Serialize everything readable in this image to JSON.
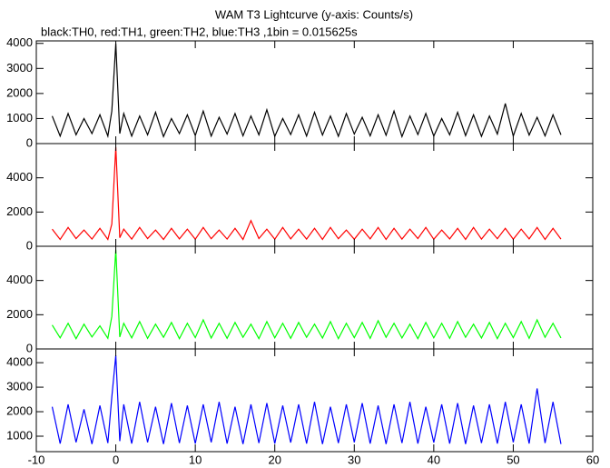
{
  "chart_data": [
    {
      "type": "line",
      "title": "WAM T3 Lightcurve (y-axis: Counts/s)",
      "subtitle": "black:TH0, red:TH1, green:TH2, blue:TH3 ,1bin = 0.015625s",
      "x": [
        -8,
        -7,
        -6,
        -5,
        -4,
        -3,
        -2,
        -1,
        -0.5,
        0,
        0.5,
        1,
        2,
        3,
        4,
        5,
        6,
        7,
        8,
        9,
        10,
        11,
        12,
        13,
        14,
        15,
        16,
        17,
        18,
        19,
        20,
        21,
        22,
        23,
        24,
        25,
        26,
        27,
        28,
        29,
        30,
        31,
        32,
        33,
        34,
        35,
        36,
        37,
        38,
        39,
        40,
        41,
        42,
        43,
        44,
        45,
        46,
        47,
        48,
        49,
        50,
        51,
        52,
        53,
        54,
        55,
        56
      ],
      "values": [
        1100,
        300,
        1200,
        350,
        1000,
        400,
        1150,
        300,
        1300,
        4000,
        400,
        1200,
        300,
        1100,
        350,
        1250,
        280,
        1000,
        400,
        1150,
        320,
        1300,
        300,
        1050,
        380,
        1200,
        310,
        1100,
        350,
        1350,
        290,
        1000,
        360,
        1150,
        300,
        1250,
        340,
        1100,
        290,
        1200,
        380,
        1050,
        310,
        1150,
        330,
        1300,
        280,
        1100,
        360,
        1200,
        300,
        1000,
        350,
        1250,
        320,
        1150,
        290,
        1100,
        380,
        1600,
        300,
        1200,
        340,
        1050,
        310,
        1150,
        350
      ],
      "color": "#000000",
      "xlim": [
        -10,
        60
      ],
      "ylim": [
        0,
        4100
      ],
      "yticks": [
        0,
        1000,
        2000,
        3000,
        4000
      ]
    },
    {
      "type": "line",
      "x": [
        -8,
        -7,
        -6,
        -5,
        -4,
        -3,
        -2,
        -1,
        -0.5,
        0,
        0.5,
        1,
        2,
        3,
        4,
        5,
        6,
        7,
        8,
        9,
        10,
        11,
        12,
        13,
        14,
        15,
        16,
        17,
        18,
        19,
        20,
        21,
        22,
        23,
        24,
        25,
        26,
        27,
        28,
        29,
        30,
        31,
        32,
        33,
        34,
        35,
        36,
        37,
        38,
        39,
        40,
        41,
        42,
        43,
        44,
        45,
        46,
        47,
        48,
        49,
        50,
        51,
        52,
        53,
        54,
        55,
        56
      ],
      "values": [
        1000,
        400,
        1100,
        450,
        950,
        420,
        1050,
        400,
        1300,
        5800,
        500,
        1000,
        420,
        1100,
        450,
        950,
        400,
        1050,
        430,
        1000,
        410,
        1100,
        440,
        950,
        420,
        1050,
        400,
        1500,
        450,
        1000,
        410,
        1100,
        430,
        1000,
        420,
        1050,
        400,
        1100,
        440,
        950,
        410,
        1000,
        430,
        1100,
        400,
        1050,
        420,
        1000,
        450,
        1100,
        410,
        950,
        430,
        1050,
        400,
        1100,
        420,
        1000,
        440,
        1050,
        410,
        1000,
        430,
        1100,
        400,
        1050,
        420
      ],
      "color": "#ff0000",
      "xlim": [
        -10,
        60
      ],
      "ylim": [
        0,
        6000
      ],
      "yticks": [
        0,
        2000,
        4000
      ]
    },
    {
      "type": "line",
      "x": [
        -8,
        -7,
        -6,
        -5,
        -4,
        -3,
        -2,
        -1,
        -0.5,
        0,
        0.5,
        1,
        2,
        3,
        4,
        5,
        6,
        7,
        8,
        9,
        10,
        11,
        12,
        13,
        14,
        15,
        16,
        17,
        18,
        19,
        20,
        21,
        22,
        23,
        24,
        25,
        26,
        27,
        28,
        29,
        30,
        31,
        32,
        33,
        34,
        35,
        36,
        37,
        38,
        39,
        40,
        41,
        42,
        43,
        44,
        45,
        46,
        47,
        48,
        49,
        50,
        51,
        52,
        53,
        54,
        55,
        56
      ],
      "values": [
        1400,
        650,
        1500,
        600,
        1450,
        700,
        1350,
        620,
        1900,
        5800,
        700,
        1500,
        650,
        1600,
        620,
        1450,
        680,
        1550,
        600,
        1500,
        660,
        1700,
        640,
        1500,
        620,
        1550,
        680,
        1450,
        600,
        1600,
        650,
        1500,
        620,
        1550,
        680,
        1450,
        640,
        1600,
        600,
        1500,
        660,
        1550,
        620,
        1650,
        680,
        1500,
        640,
        1450,
        600,
        1550,
        650,
        1500,
        620,
        1600,
        680,
        1450,
        640,
        1550,
        600,
        1500,
        660,
        1600,
        620,
        1700,
        680,
        1500,
        640
      ],
      "color": "#00ff00",
      "xlim": [
        -10,
        60
      ],
      "ylim": [
        0,
        6000
      ],
      "yticks": [
        0,
        2000,
        4000
      ]
    },
    {
      "type": "line",
      "x": [
        -8,
        -7,
        -6,
        -5,
        -4,
        -3,
        -2,
        -1,
        -0.5,
        0,
        0.5,
        1,
        2,
        3,
        4,
        5,
        6,
        7,
        8,
        9,
        10,
        11,
        12,
        13,
        14,
        15,
        16,
        17,
        18,
        19,
        20,
        21,
        22,
        23,
        24,
        25,
        26,
        27,
        28,
        29,
        30,
        31,
        32,
        33,
        34,
        35,
        36,
        37,
        38,
        39,
        40,
        41,
        42,
        43,
        44,
        45,
        46,
        47,
        48,
        49,
        50,
        51,
        52,
        53,
        54,
        55,
        56
      ],
      "values": [
        2200,
        700,
        2300,
        750,
        2100,
        680,
        2250,
        720,
        2600,
        4300,
        800,
        2300,
        700,
        2400,
        750,
        2200,
        680,
        2350,
        720,
        2250,
        700,
        2300,
        750,
        2400,
        700,
        2200,
        680,
        2300,
        720,
        2350,
        700,
        2250,
        740,
        2300,
        700,
        2400,
        680,
        2200,
        720,
        2300,
        750,
        2350,
        700,
        2250,
        680,
        2300,
        720,
        2400,
        700,
        2200,
        740,
        2300,
        700,
        2350,
        680,
        2250,
        720,
        2300,
        700,
        2400,
        750,
        2300,
        700,
        2950,
        720,
        2400,
        680
      ],
      "color": "#0000ff",
      "xlim": [
        -10,
        60
      ],
      "ylim": [
        370,
        4560
      ],
      "yticks": [
        1000,
        2000,
        3000,
        4000
      ],
      "xticks": [
        -10,
        0,
        10,
        20,
        30,
        40,
        50,
        60
      ]
    }
  ]
}
